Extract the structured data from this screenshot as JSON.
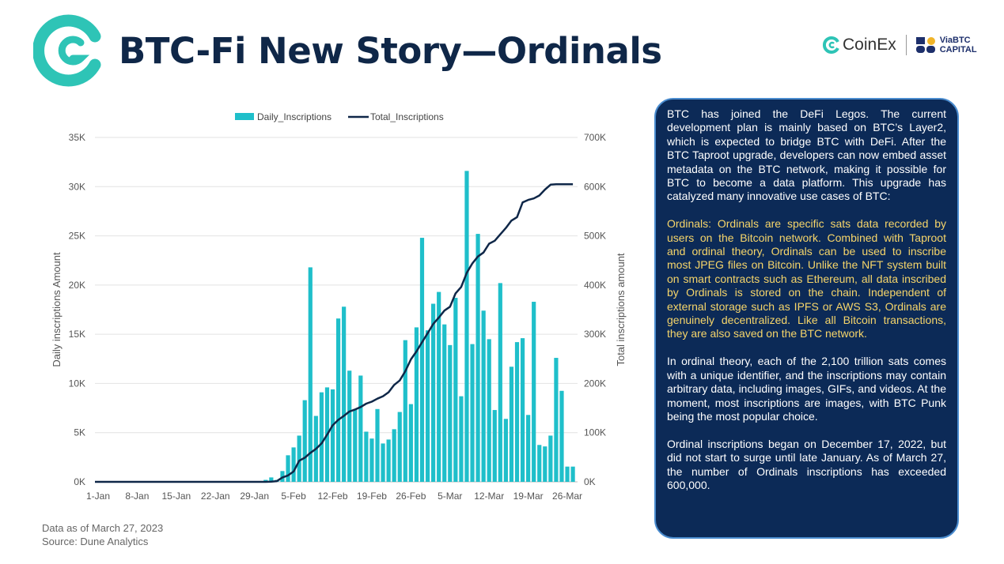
{
  "header": {
    "title": "BTC-Fi New Story—Ordinals",
    "logo_coinex": "CoinEx",
    "logo_viabtc": "ViaBTC CAPITAL"
  },
  "colors": {
    "bar": "#1fbfca",
    "line": "#0f2748",
    "panel_bg": "#0c2a57",
    "highlight_text": "#f6d56a",
    "logo": "#2ec4b6"
  },
  "chart_data": {
    "type": "bar+line",
    "legend": [
      "Daily_Inscriptions",
      "Total_Inscriptions"
    ],
    "legend_position": "top",
    "ylabel": "Daily inscriptions Amount",
    "y2label": "Total inscriptions amount",
    "ylim": [
      0,
      35000
    ],
    "y2lim": [
      0,
      700000
    ],
    "yticks": [
      "0K",
      "5K",
      "10K",
      "15K",
      "20K",
      "25K",
      "30K",
      "35K"
    ],
    "y2ticks": [
      "0K",
      "100K",
      "200K",
      "300K",
      "400K",
      "500K",
      "600K",
      "700K"
    ],
    "xticks": [
      "1-Jan",
      "8-Jan",
      "15-Jan",
      "22-Jan",
      "29-Jan",
      "5-Feb",
      "12-Feb",
      "19-Feb",
      "26-Feb",
      "5-Mar",
      "12-Mar",
      "19-Mar",
      "26-Mar"
    ],
    "grid": "horizontal",
    "x": [
      "31-Jan",
      "1-Feb",
      "2-Feb",
      "3-Feb",
      "4-Feb",
      "5-Feb",
      "6-Feb",
      "7-Feb",
      "8-Feb",
      "9-Feb",
      "10-Feb",
      "11-Feb",
      "12-Feb",
      "13-Feb",
      "14-Feb",
      "15-Feb",
      "16-Feb",
      "17-Feb",
      "18-Feb",
      "19-Feb",
      "20-Feb",
      "21-Feb",
      "22-Feb",
      "23-Feb",
      "24-Feb",
      "25-Feb",
      "26-Feb",
      "27-Feb",
      "28-Feb",
      "1-Mar",
      "2-Mar",
      "3-Mar",
      "4-Mar",
      "5-Mar",
      "6-Mar",
      "7-Mar",
      "8-Mar",
      "9-Mar",
      "10-Mar",
      "11-Mar",
      "12-Mar",
      "13-Mar",
      "14-Mar",
      "15-Mar",
      "16-Mar",
      "17-Mar",
      "18-Mar",
      "19-Mar",
      "20-Mar",
      "21-Mar",
      "22-Mar",
      "23-Mar",
      "24-Mar",
      "25-Mar",
      "26-Mar",
      "27-Mar"
    ],
    "series": [
      {
        "name": "Daily_Inscriptions",
        "type": "bar",
        "values": [
          200,
          450,
          200,
          1100,
          2700,
          3500,
          4700,
          8300,
          21800,
          6700,
          9100,
          9600,
          9400,
          16600,
          17800,
          11300,
          7400,
          10800,
          5100,
          4400,
          7400,
          3900,
          4300,
          5350,
          7100,
          14400,
          7900,
          15700,
          24800,
          15400,
          18100,
          19300,
          16000,
          13900,
          18700,
          8700,
          31600,
          14000,
          25200,
          17400,
          14500,
          7300,
          20200,
          6400,
          11700,
          14200,
          14600,
          6800,
          18300,
          3750,
          3600,
          4700,
          12600,
          9250,
          1550,
          1550
        ]
      },
      {
        "name": "Total_Inscriptions",
        "type": "line",
        "values": [
          0,
          500,
          1500,
          9000,
          13000,
          21000,
          43000,
          49000,
          59000,
          67000,
          78000,
          96000,
          115000,
          126000,
          134000,
          143000,
          147000,
          152000,
          159000,
          163000,
          169000,
          174000,
          182000,
          197000,
          206000,
          225000,
          249000,
          265000,
          284000,
          302000,
          321000,
          334000,
          348000,
          356000,
          383000,
          396000,
          425000,
          444000,
          458000,
          466000,
          484000,
          490000,
          503000,
          516000,
          531000,
          538000,
          568000,
          573000,
          576000,
          582000,
          594000,
          604000,
          605000,
          605000,
          605000,
          605000
        ]
      }
    ]
  },
  "footer": {
    "date": "Data as of March 27, 2023",
    "source": "Source: Dune Analytics"
  },
  "panel": {
    "p1": "BTC has joined the DeFi Legos. The current development plan is mainly based on BTC’s Layer2, which is expected to bridge BTC with DeFi. After the BTC Taproot upgrade, developers can now embed asset metadata on the BTC network, making it possible for BTC to become a data platform. This upgrade has catalyzed many innovative use cases of BTC:",
    "p2": "Ordinals: Ordinals are specific sats data recorded by users on the Bitcoin network. Combined with Taproot and ordinal theory, Ordinals can be used to inscribe most JPEG files on Bitcoin. Unlike the NFT system built on smart contracts such as Ethereum, all data inscribed by Ordinals is stored on the chain. Independent of external storage such as IPFS or AWS S3, Ordinals are genuinely decentralized. Like all Bitcoin transactions, they are also saved on the BTC network.",
    "p3": "In ordinal theory, each of the 2,100 trillion sats comes with a unique identifier, and the inscriptions may contain arbitrary data, including images, GIFs, and videos. At the moment, most inscriptions are images, with BTC Punk being the most popular choice.",
    "p4": "Ordinal inscriptions began on December 17, 2022, but did not start to surge until late January. As of March 27, the number of Ordinals inscriptions has exceeded 600,000."
  }
}
